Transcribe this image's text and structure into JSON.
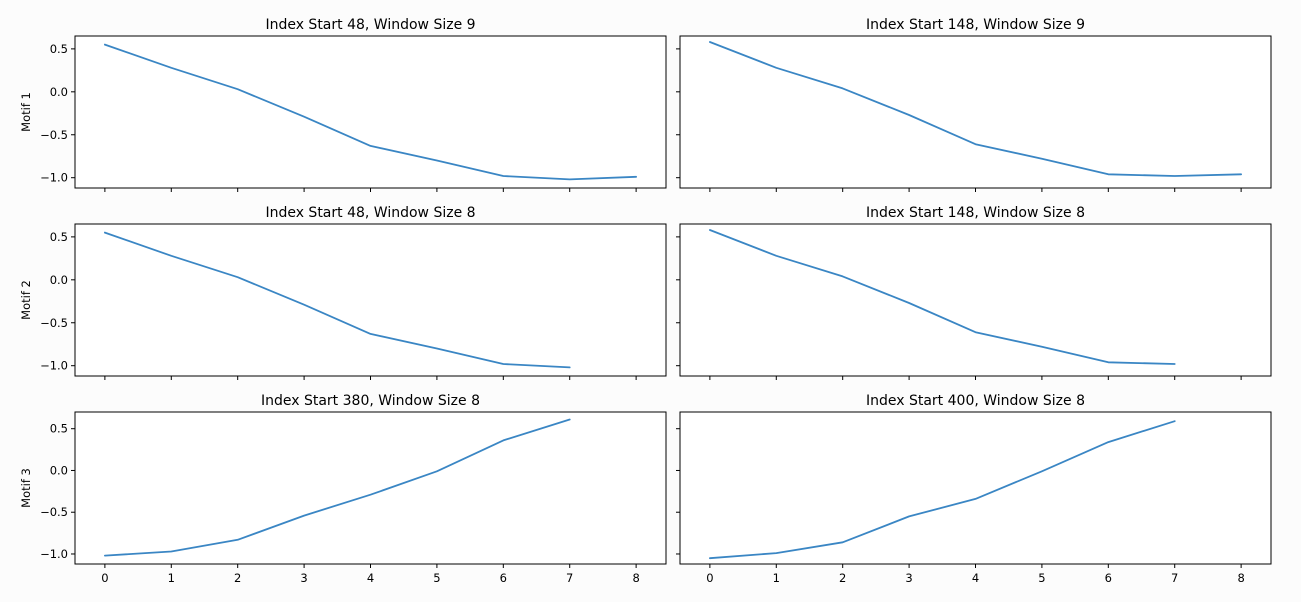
{
  "chart_data": [
    {
      "type": "line",
      "title": "Index Start 48, Window Size 9",
      "ylabel": "Motif 1",
      "x": [
        0,
        1,
        2,
        3,
        4,
        5,
        6,
        7,
        8
      ],
      "values": [
        0.55,
        0.28,
        0.03,
        -0.29,
        -0.63,
        -0.8,
        -0.98,
        -1.02,
        -0.99
      ],
      "xlim": [
        -0.45,
        8.45
      ],
      "ylim": [
        -1.12,
        0.65
      ],
      "xticks": [
        0,
        1,
        2,
        3,
        4,
        5,
        6,
        7,
        8
      ],
      "yticks": [
        0.5,
        0.0,
        -0.5,
        -1.0
      ],
      "show_xtick_labels": false,
      "show_ytick_labels": true
    },
    {
      "type": "line",
      "title": "Index Start 148, Window Size 9",
      "ylabel": "",
      "x": [
        0,
        1,
        2,
        3,
        4,
        5,
        6,
        7,
        8
      ],
      "values": [
        0.58,
        0.28,
        0.04,
        -0.27,
        -0.61,
        -0.78,
        -0.96,
        -0.98,
        -0.96
      ],
      "xlim": [
        -0.45,
        8.45
      ],
      "ylim": [
        -1.12,
        0.65
      ],
      "xticks": [
        0,
        1,
        2,
        3,
        4,
        5,
        6,
        7,
        8
      ],
      "yticks": [
        0.5,
        0.0,
        -0.5,
        -1.0
      ],
      "show_xtick_labels": false,
      "show_ytick_labels": false
    },
    {
      "type": "line",
      "title": "Index Start 48, Window Size 8",
      "ylabel": "Motif 2",
      "x": [
        0,
        1,
        2,
        3,
        4,
        5,
        6,
        7
      ],
      "values": [
        0.55,
        0.28,
        0.03,
        -0.29,
        -0.63,
        -0.8,
        -0.98,
        -1.02
      ],
      "xlim": [
        -0.45,
        8.45
      ],
      "ylim": [
        -1.12,
        0.65
      ],
      "xticks": [
        0,
        1,
        2,
        3,
        4,
        5,
        6,
        7,
        8
      ],
      "yticks": [
        0.5,
        0.0,
        -0.5,
        -1.0
      ],
      "show_xtick_labels": false,
      "show_ytick_labels": true
    },
    {
      "type": "line",
      "title": "Index Start 148, Window Size 8",
      "ylabel": "",
      "x": [
        0,
        1,
        2,
        3,
        4,
        5,
        6,
        7
      ],
      "values": [
        0.58,
        0.28,
        0.04,
        -0.27,
        -0.61,
        -0.78,
        -0.96,
        -0.98
      ],
      "xlim": [
        -0.45,
        8.45
      ],
      "ylim": [
        -1.12,
        0.65
      ],
      "xticks": [
        0,
        1,
        2,
        3,
        4,
        5,
        6,
        7,
        8
      ],
      "yticks": [
        0.5,
        0.0,
        -0.5,
        -1.0
      ],
      "show_xtick_labels": false,
      "show_ytick_labels": false
    },
    {
      "type": "line",
      "title": "Index Start 380, Window Size 8",
      "ylabel": "Motif 3",
      "x": [
        0,
        1,
        2,
        3,
        4,
        5,
        6,
        7
      ],
      "values": [
        -1.02,
        -0.97,
        -0.83,
        -0.54,
        -0.29,
        -0.01,
        0.36,
        0.61
      ],
      "xlim": [
        -0.45,
        8.45
      ],
      "ylim": [
        -1.12,
        0.7
      ],
      "xticks": [
        0,
        1,
        2,
        3,
        4,
        5,
        6,
        7,
        8
      ],
      "yticks": [
        0.5,
        0.0,
        -0.5,
        -1.0
      ],
      "show_xtick_labels": true,
      "show_ytick_labels": true
    },
    {
      "type": "line",
      "title": "Index Start 400, Window Size 8",
      "ylabel": "",
      "x": [
        0,
        1,
        2,
        3,
        4,
        5,
        6,
        7
      ],
      "values": [
        -1.05,
        -0.99,
        -0.86,
        -0.55,
        -0.34,
        -0.01,
        0.34,
        0.59
      ],
      "xlim": [
        -0.45,
        8.45
      ],
      "ylim": [
        -1.12,
        0.7
      ],
      "xticks": [
        0,
        1,
        2,
        3,
        4,
        5,
        6,
        7,
        8
      ],
      "yticks": [
        0.5,
        0.0,
        -0.5,
        -1.0
      ],
      "show_xtick_labels": true,
      "show_ytick_labels": false
    }
  ],
  "colors": {
    "series": "#3a86c4"
  }
}
